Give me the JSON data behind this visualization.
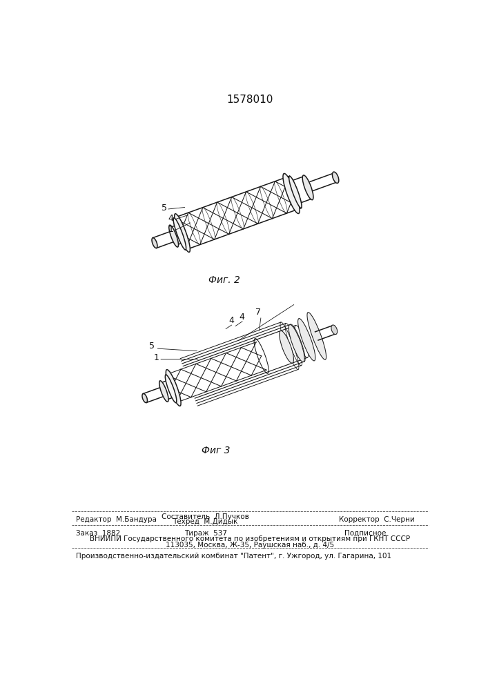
{
  "title": "1578010",
  "title_fontsize": 11,
  "fig1_caption": "Фиг. 2",
  "fig2_caption": "Фиг 3",
  "footer_line1_left": "Редактор  М.Бандура",
  "footer_line1_center_top": "Составитель  Л.Пучков",
  "footer_line1_center_bot": "Техред  М.Дидык",
  "footer_line1_right": "Корректор  С.Черни",
  "footer_line2_left": "Заказ  1882",
  "footer_line2_center": "Тираж  537",
  "footer_line2_right": "Подписное",
  "footer_line3": "ВНИИПИ Государственного комитета по изобретениям и открытиям при ГКНТ СССР",
  "footer_line4": "113035, Москва, Ж-35, Раушская наб., д. 4/5",
  "footer_line5": "Производственно-издательский комбинат \"Патент\", г. Ужгород, ул. Гагарина, 101",
  "bg_color": "#ffffff",
  "line_color": "#1a1a1a",
  "text_color": "#111111",
  "font_size_footer": 7.5,
  "font_size_caption": 10,
  "font_size_label": 9
}
